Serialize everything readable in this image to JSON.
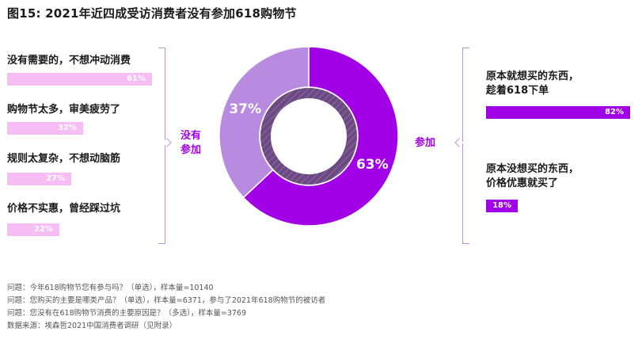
{
  "title": "图15: 2021年近四成受访消费者没有参加618购物节",
  "left_group": {
    "label_line1": "没有",
    "label_line2": "参加",
    "items": [
      {
        "label": "没有需要的，不想冲动消费",
        "value_text": "61%",
        "value": 61
      },
      {
        "label": "购物节太多，审美疲劳了",
        "value_text": "32%",
        "value": 32
      },
      {
        "label": "规则太复杂，不想动脑筋",
        "value_text": "27%",
        "value": 27
      },
      {
        "label": "价格不实惠，曾经踩过坑",
        "value_text": "22%",
        "value": 22
      }
    ]
  },
  "right_group": {
    "label": "参加",
    "items": [
      {
        "label_line1": "原本就想买的东西，",
        "label_line2": "趁着618下单",
        "value_text": "82%",
        "value": 82
      },
      {
        "label_line1": "原本没想买的东西，",
        "label_line2": "价格优惠就买了",
        "value_text": "18%",
        "value": 18
      }
    ]
  },
  "notes": [
    "问题：今年618购物节您有参与吗？（单选），样本量=10140",
    "问题：您购买的主要是哪类产品？（单选），样本量=6371，参与了2021年618购物节的被访者",
    "问题：您没有在618购物节消费的主要原因是？（多选），样本量=3769",
    "数据来源：埃森哲2021中国消费者调研（见附录）"
  ],
  "colors": {
    "participated": "#a100e6",
    "not_participated": "#b98be0",
    "light_bar": "#f7bdf5",
    "bracket": "#c28fd6"
  },
  "chart_data": [
    {
      "type": "pie",
      "categories": [
        "参加",
        "没有参加"
      ],
      "values": [
        63,
        37
      ],
      "labels": [
        "63%",
        "37%"
      ]
    },
    {
      "type": "bar",
      "categories": [
        "没有需要的，不想冲动消费",
        "购物节太多，审美疲劳了",
        "规则太复杂，不想动脑筋",
        "价格不实惠，曾经踩过坑"
      ],
      "values": [
        61,
        32,
        27,
        22
      ]
    },
    {
      "type": "bar",
      "categories": [
        "原本就想买的东西，趁着618下单",
        "原本没想买的东西，价格优惠就买了"
      ],
      "values": [
        82,
        18
      ]
    }
  ]
}
